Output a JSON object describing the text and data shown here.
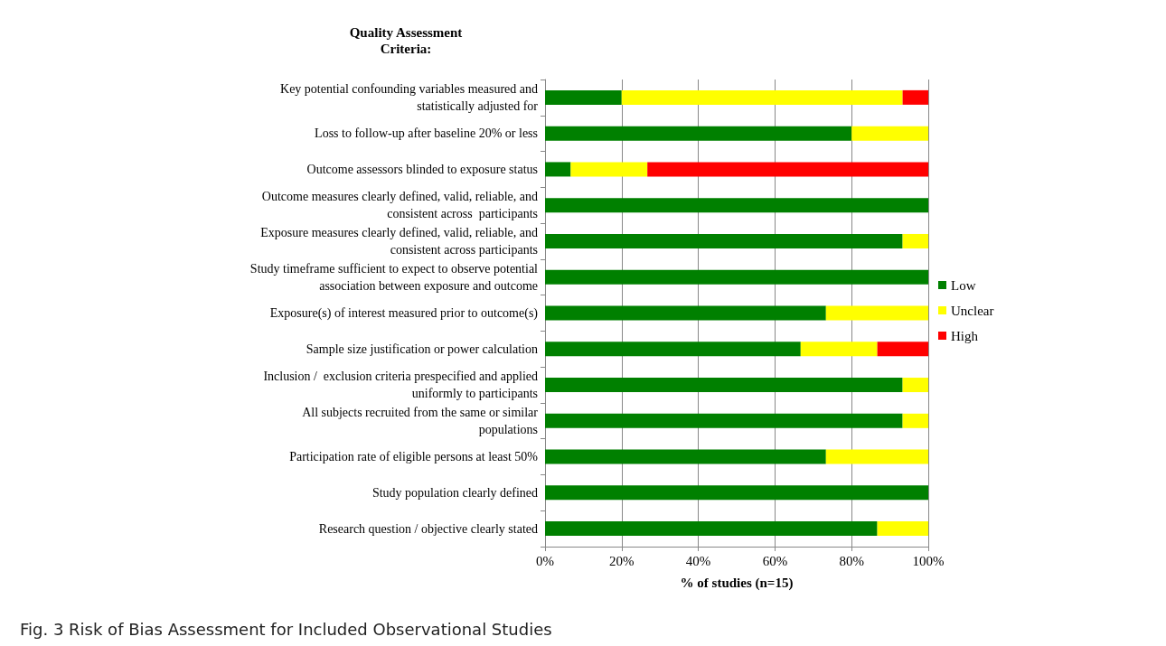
{
  "chart_data": {
    "type": "bar",
    "orientation": "horizontal",
    "stacked": true,
    "title": "Quality Assessment\nCriteria:",
    "xlabel": "% of studies (n=15)",
    "annotations": [
      "Fig. 3 Risk of Bias Assessment for Included Observational Studies"
    ],
    "categories": [
      "Key potential confounding variables measured and\nstatistically adjusted for",
      "Loss to follow-up after baseline 20% or less",
      "Outcome assessors blinded to exposure status",
      "Outcome measures clearly defined, valid, reliable, and\nconsistent across  participants",
      "Exposure measures clearly defined, valid, reliable, and\nconsistent across participants",
      "Study timeframe sufficient to expect to observe potential\nassociation between exposure and outcome",
      "Exposure(s) of interest measured prior to outcome(s)",
      "Sample size justification or power calculation",
      "Inclusion /  exclusion criteria prespecified and applied\nuniformly to participants",
      "All subjects recruited from the same or similar\npopulations",
      "Participation rate of eligible persons at least 50%",
      "Study population clearly defined",
      "Research question / objective clearly stated"
    ],
    "series": [
      {
        "name": "Low",
        "color": "#008000",
        "values": [
          20,
          80,
          6.7,
          100,
          93.3,
          100,
          73.3,
          66.7,
          93.3,
          93.3,
          73.3,
          100,
          86.7
        ]
      },
      {
        "name": "Unclear",
        "color": "#ffff00",
        "values": [
          73.3,
          20,
          20,
          0,
          6.7,
          0,
          26.7,
          20,
          6.7,
          6.7,
          26.7,
          0,
          13.3
        ]
      },
      {
        "name": "High",
        "color": "#ff0000",
        "values": [
          6.7,
          0,
          73.3,
          0,
          0,
          0,
          0,
          13.3,
          0,
          0,
          0,
          0,
          0
        ]
      }
    ],
    "xlim": [
      0,
      100
    ],
    "xticks": [
      {
        "value": 0,
        "label": "0%"
      },
      {
        "value": 20,
        "label": "20%"
      },
      {
        "value": 40,
        "label": "40%"
      },
      {
        "value": 60,
        "label": "60%"
      },
      {
        "value": 80,
        "label": "80%"
      },
      {
        "value": 100,
        "label": "100%"
      }
    ],
    "grid": "x",
    "legend": "right"
  }
}
